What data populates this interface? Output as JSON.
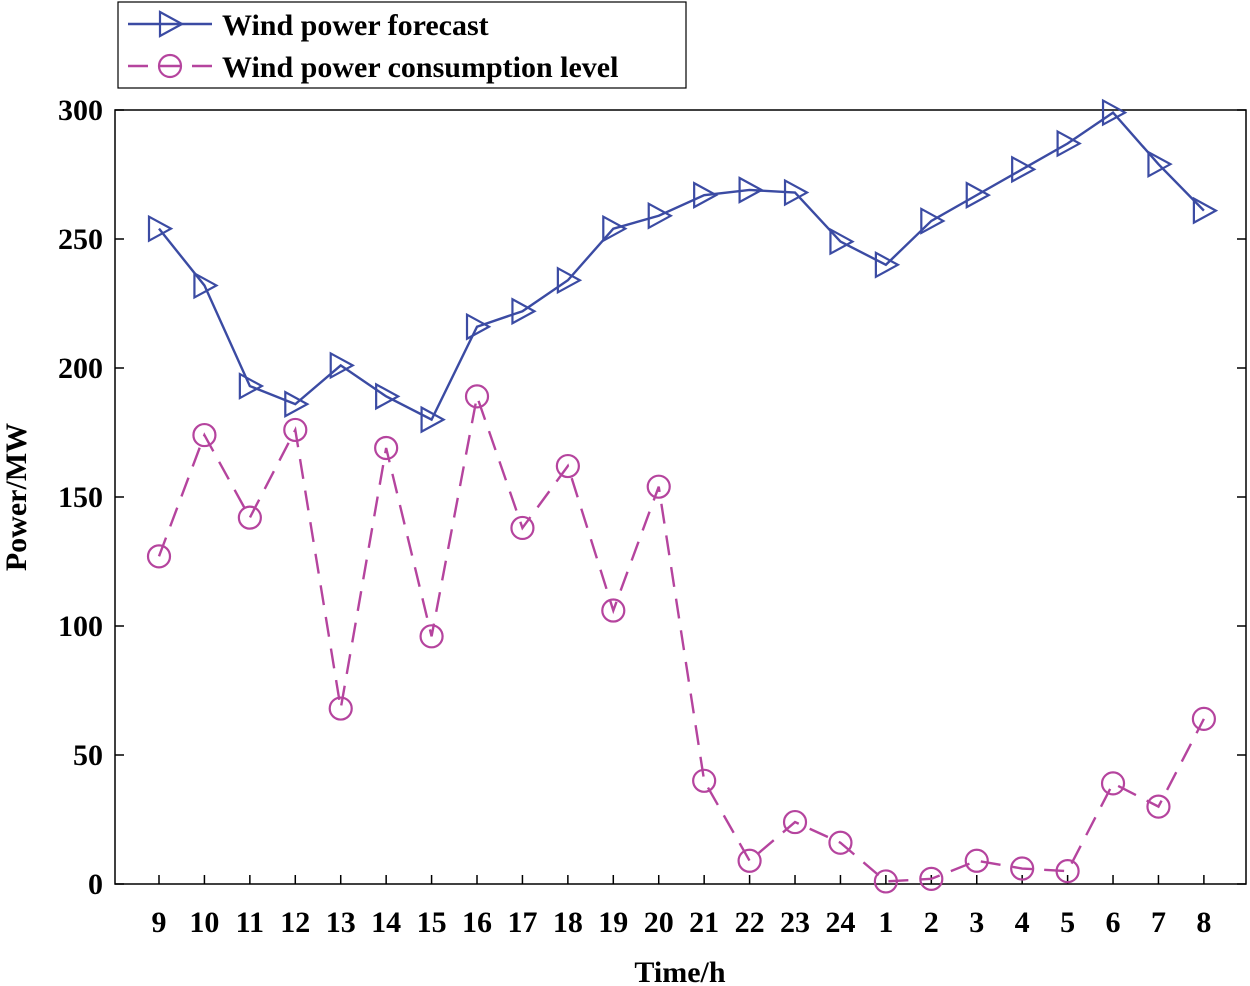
{
  "chart_data": {
    "type": "line",
    "xlabel": "Time/h",
    "ylabel": "Power/MW",
    "categories": [
      "9",
      "10",
      "11",
      "12",
      "13",
      "14",
      "15",
      "16",
      "17",
      "18",
      "19",
      "20",
      "21",
      "22",
      "23",
      "24",
      "1",
      "2",
      "3",
      "4",
      "5",
      "6",
      "7",
      "8"
    ],
    "ylim": [
      0,
      300
    ],
    "yticks": [
      0,
      50,
      100,
      150,
      200,
      250,
      300
    ],
    "grid": false,
    "legend_position": "top-left",
    "series": [
      {
        "name": "Wind power forecast",
        "color": "#3b4ba3",
        "line_style": "solid",
        "marker": "right-triangle",
        "values": [
          254,
          232,
          193,
          186,
          201,
          189,
          180,
          216,
          222,
          234,
          254,
          259,
          267,
          269,
          268,
          249,
          240,
          257,
          267,
          277,
          287,
          299,
          279,
          261
        ]
      },
      {
        "name": "Wind power consumption level",
        "color": "#b5449e",
        "line_style": "dashed",
        "marker": "circle",
        "values": [
          127,
          174,
          142,
          176,
          68,
          169,
          96,
          189,
          138,
          162,
          106,
          154,
          40,
          9,
          24,
          16,
          1,
          2,
          9,
          6,
          5,
          39,
          30,
          64
        ]
      }
    ]
  }
}
